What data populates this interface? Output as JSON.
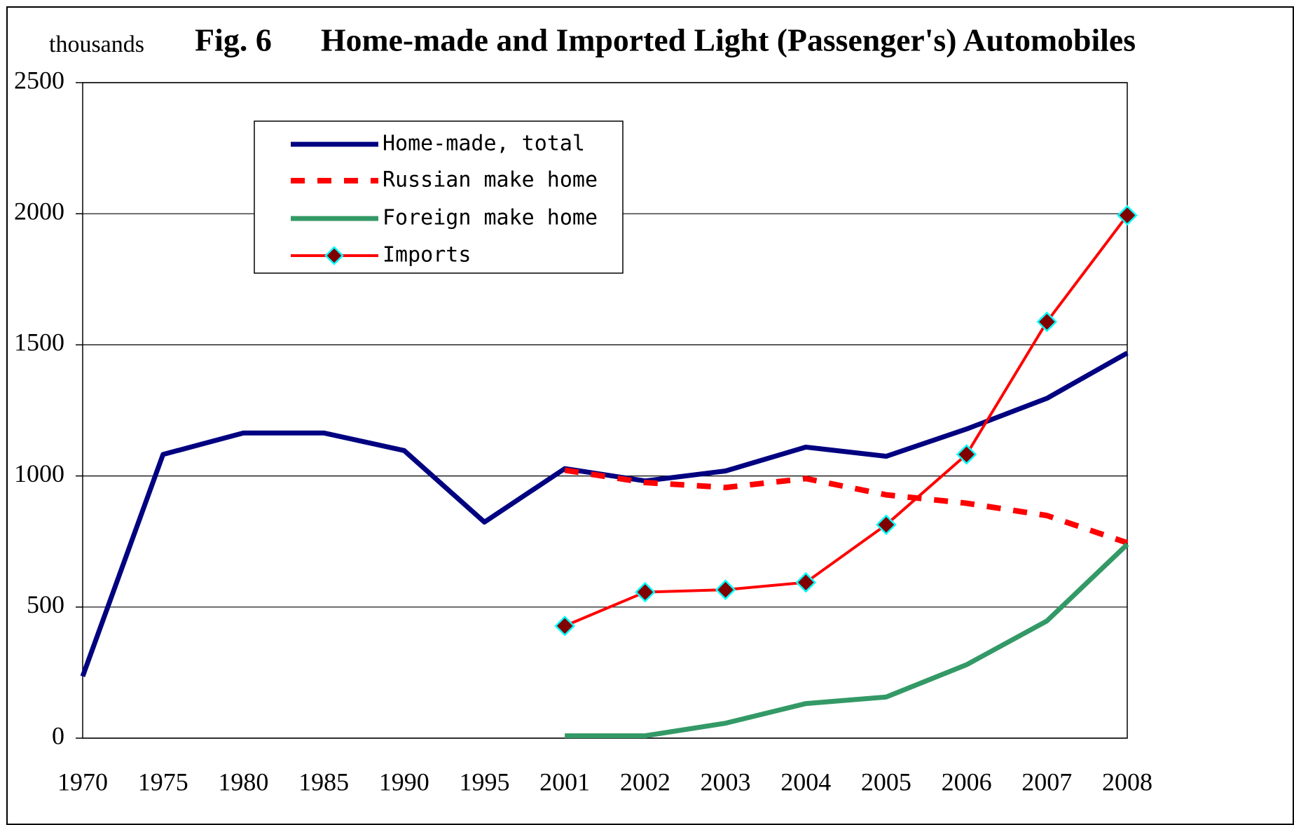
{
  "chart_data": {
    "type": "line",
    "figure_label": "Fig. 6",
    "title": "Home-made and Imported Light (Passenger's) Automobiles",
    "y_label": "thousands",
    "categories": [
      "1970",
      "1975",
      "1980",
      "1985",
      "1990",
      "1995",
      "2001",
      "2002",
      "2003",
      "2004",
      "2005",
      "2006",
      "2007",
      "2008"
    ],
    "series": [
      {
        "name": "Home-made, total",
        "color": "#000080",
        "style": "solid",
        "values": [
          236,
          1082,
          1164,
          1164,
          1097,
          824,
          1028,
          981,
          1019,
          1110,
          1075,
          1179,
          1296,
          1469
        ]
      },
      {
        "name": "Russian make home",
        "color": "#ff0000",
        "style": "dashed",
        "values": [
          null,
          null,
          null,
          null,
          null,
          null,
          1022,
          975,
          956,
          990,
          928,
          896,
          849,
          745
        ]
      },
      {
        "name": "Foreign make home",
        "color": "#339966",
        "style": "solid",
        "values": [
          null,
          null,
          null,
          null,
          null,
          null,
          9,
          9,
          57,
          132,
          157,
          280,
          447,
          739
        ]
      },
      {
        "name": "Imports",
        "color": "#ff0000",
        "style": "marker",
        "marker_color": "#800000",
        "marker_edge": "#00ffff",
        "values": [
          null,
          null,
          null,
          null,
          null,
          null,
          428,
          557,
          566,
          594,
          814,
          1082,
          1588,
          1994
        ]
      }
    ],
    "ylim": [
      0,
      2500
    ],
    "yticks": [
      0,
      500,
      1000,
      1500,
      2000,
      2500
    ],
    "grid": true,
    "legend": "top-left"
  }
}
